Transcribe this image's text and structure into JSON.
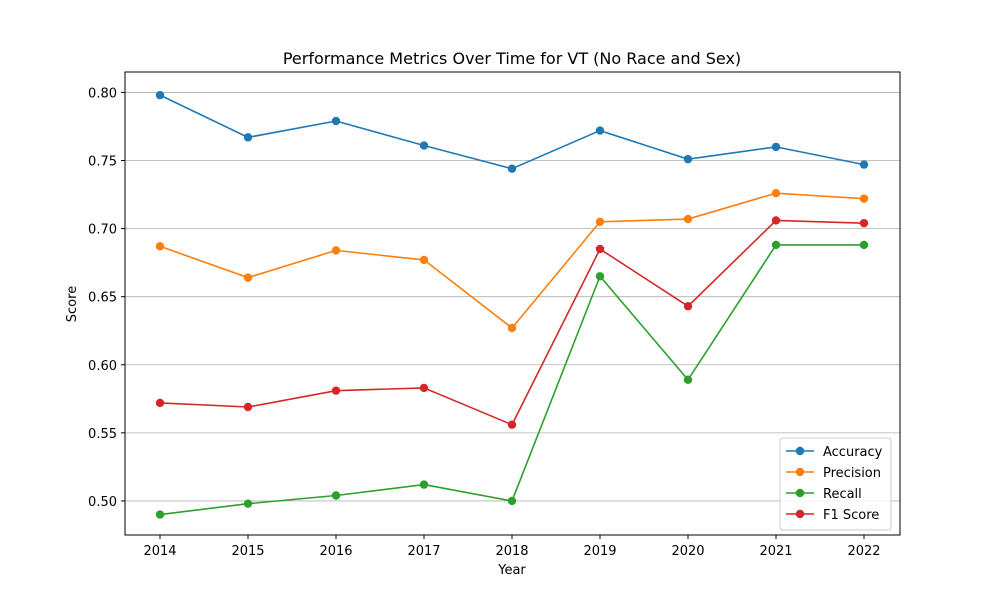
{
  "chart_data": {
    "type": "line",
    "title": "Performance Metrics Over Time for VT (No Race and Sex)",
    "xlabel": "Year",
    "ylabel": "Score",
    "x": [
      "2014",
      "2015",
      "2016",
      "2017",
      "2018",
      "2019",
      "2020",
      "2021",
      "2022"
    ],
    "ylim": [
      0.475,
      0.815
    ],
    "yticks": [
      "0.50",
      "0.55",
      "0.60",
      "0.65",
      "0.70",
      "0.75",
      "0.80"
    ],
    "grid": "horizontal",
    "legend_position": "bottom-right",
    "series": [
      {
        "name": "Accuracy",
        "color": "#1f77b4",
        "values": [
          0.798,
          0.767,
          0.779,
          0.761,
          0.744,
          0.772,
          0.751,
          0.76,
          0.747
        ]
      },
      {
        "name": "Precision",
        "color": "#ff7f0e",
        "values": [
          0.687,
          0.664,
          0.684,
          0.677,
          0.627,
          0.705,
          0.707,
          0.726,
          0.722
        ]
      },
      {
        "name": "Recall",
        "color": "#2ca02c",
        "values": [
          0.49,
          0.498,
          0.504,
          0.512,
          0.5,
          0.665,
          0.589,
          0.688,
          0.688
        ]
      },
      {
        "name": "F1 Score",
        "color": "#d62728",
        "values": [
          0.572,
          0.569,
          0.581,
          0.583,
          0.556,
          0.685,
          0.643,
          0.706,
          0.704
        ]
      }
    ]
  }
}
